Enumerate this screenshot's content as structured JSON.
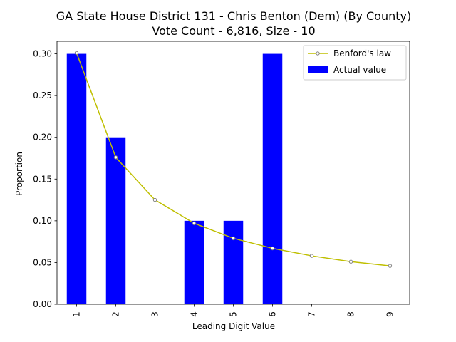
{
  "chart_data": {
    "type": "bar",
    "title": "GA State House District 131 - Chris Benton (Dem) (By County)",
    "subtitle": "Vote Count - 6,816, Size - 10",
    "xlabel": "Leading Digit Value",
    "ylabel": "Proportion",
    "categories": [
      "1",
      "2",
      "3",
      "4",
      "5",
      "6",
      "7",
      "8",
      "9"
    ],
    "ylim": [
      0,
      0.315
    ],
    "yticks": [
      "0.00",
      "0.05",
      "0.10",
      "0.15",
      "0.20",
      "0.25",
      "0.30"
    ],
    "ytick_values": [
      0,
      0.05,
      0.1,
      0.15,
      0.2,
      0.25,
      0.3
    ],
    "grid": false,
    "legend_position": "top-right",
    "series": [
      {
        "name": "Benford's law",
        "kind": "line",
        "color": "#bfbf00",
        "marker_color": "#808080",
        "values": [
          0.301,
          0.176,
          0.125,
          0.097,
          0.079,
          0.067,
          0.058,
          0.051,
          0.046
        ]
      },
      {
        "name": "Actual value",
        "kind": "bar",
        "color": "#0000ff",
        "values": [
          0.3,
          0.2,
          0.0,
          0.1,
          0.1,
          0.3,
          0.0,
          0.0,
          0.0
        ]
      }
    ]
  }
}
